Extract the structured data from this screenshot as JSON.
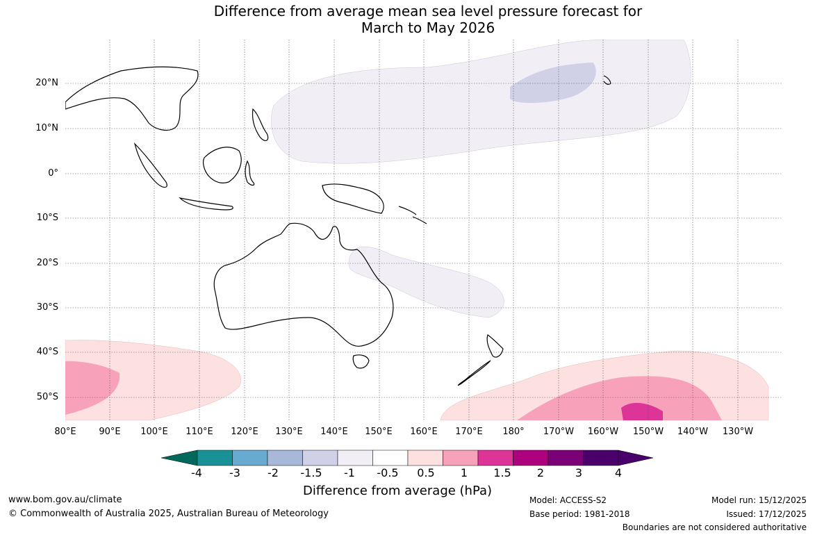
{
  "title": {
    "line1": "Difference from average mean sea level pressure forecast for",
    "line2": "March to May 2026"
  },
  "map": {
    "lat_labels": [
      "20°N",
      "10°N",
      "0°",
      "10°S",
      "20°S",
      "30°S",
      "40°S",
      "50°S"
    ],
    "lon_labels": [
      "80°E",
      "90°E",
      "100°E",
      "110°E",
      "120°E",
      "130°E",
      "140°E",
      "150°E",
      "160°E",
      "170°E",
      "180°",
      "170°W",
      "160°W",
      "150°W",
      "140°W",
      "130°W"
    ]
  },
  "legend": {
    "title": "Difference from average (hPa)",
    "ticks": [
      "-4",
      "-3",
      "-2",
      "-1.5",
      "-1",
      "-0.5",
      "0.5",
      "1",
      "1.5",
      "2",
      "3",
      "4"
    ],
    "colors": [
      "#1a9196",
      "#67abd0",
      "#a7b8d9",
      "#d0d1e6",
      "#f1eef6",
      "#ffffff",
      "#fde0e0",
      "#f7a1ba",
      "#dd3497",
      "#ae017e",
      "#7a0177",
      "#49006a"
    ],
    "min_color": "#00695c",
    "max_color": "#49006a"
  },
  "footer": {
    "website": "www.bom.gov.au/climate",
    "copyright": "© Commonwealth of Australia 2025, Australian Bureau of Meteorology",
    "model": "Model: ACCESS-S2",
    "base_period": "Base period: 1981-2018",
    "model_run": "Model run: 15/12/2025",
    "issued": "Issued: 17/12/2025",
    "disclaimer": "Boundaries are not considered authoritative"
  }
}
